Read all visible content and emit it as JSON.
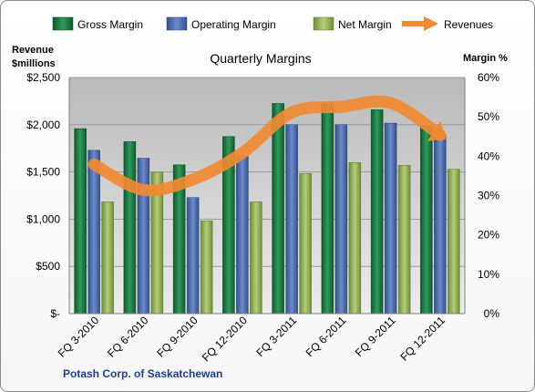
{
  "chart_data": {
    "type": "bar",
    "title": "Quarterly Margins",
    "left_axis_title": [
      "Revenue",
      "$millions"
    ],
    "right_axis_title": "Margin %",
    "source": "Potash Corp. of Saskatchewan",
    "categories": [
      "FQ 3-2010",
      "FQ 6-2010",
      "FQ 9-2010",
      "FQ 12-2010",
      "FQ 3-2011",
      "FQ 6-2011",
      "FQ 9-2011",
      "FQ 12-2011"
    ],
    "y_left": {
      "min": 0,
      "max": 2500,
      "step": 500,
      "ticks": [
        "$-",
        "$500",
        "$1,000",
        "$1,500",
        "$2,000",
        "$2,500"
      ]
    },
    "y_right": {
      "min": 0,
      "max": 0.6,
      "step": 0.1,
      "ticks": [
        "0%",
        "10%",
        "20%",
        "30%",
        "40%",
        "50%",
        "60%"
      ]
    },
    "series": [
      {
        "name": "Gross Margin",
        "axis": "right",
        "kind": "bar",
        "color": "#1f7a44",
        "values": [
          0.47,
          0.437,
          0.378,
          0.45,
          0.534,
          0.534,
          0.518,
          0.477
        ]
      },
      {
        "name": "Operating Margin",
        "axis": "right",
        "kind": "bar",
        "color": "#4f6fb4",
        "values": [
          0.415,
          0.395,
          0.295,
          0.4,
          0.48,
          0.48,
          0.484,
          0.454
        ]
      },
      {
        "name": "Net Margin",
        "axis": "right",
        "kind": "bar",
        "color": "#96b65a",
        "values": [
          0.284,
          0.359,
          0.236,
          0.284,
          0.356,
          0.384,
          0.377,
          0.367
        ]
      },
      {
        "name": "Revenues",
        "axis": "left",
        "kind": "line",
        "color": "#f08a32",
        "values": [
          1580,
          1310,
          1420,
          1700,
          2130,
          2190,
          2230,
          1890
        ]
      }
    ],
    "legend_position": "top",
    "grid": true
  }
}
